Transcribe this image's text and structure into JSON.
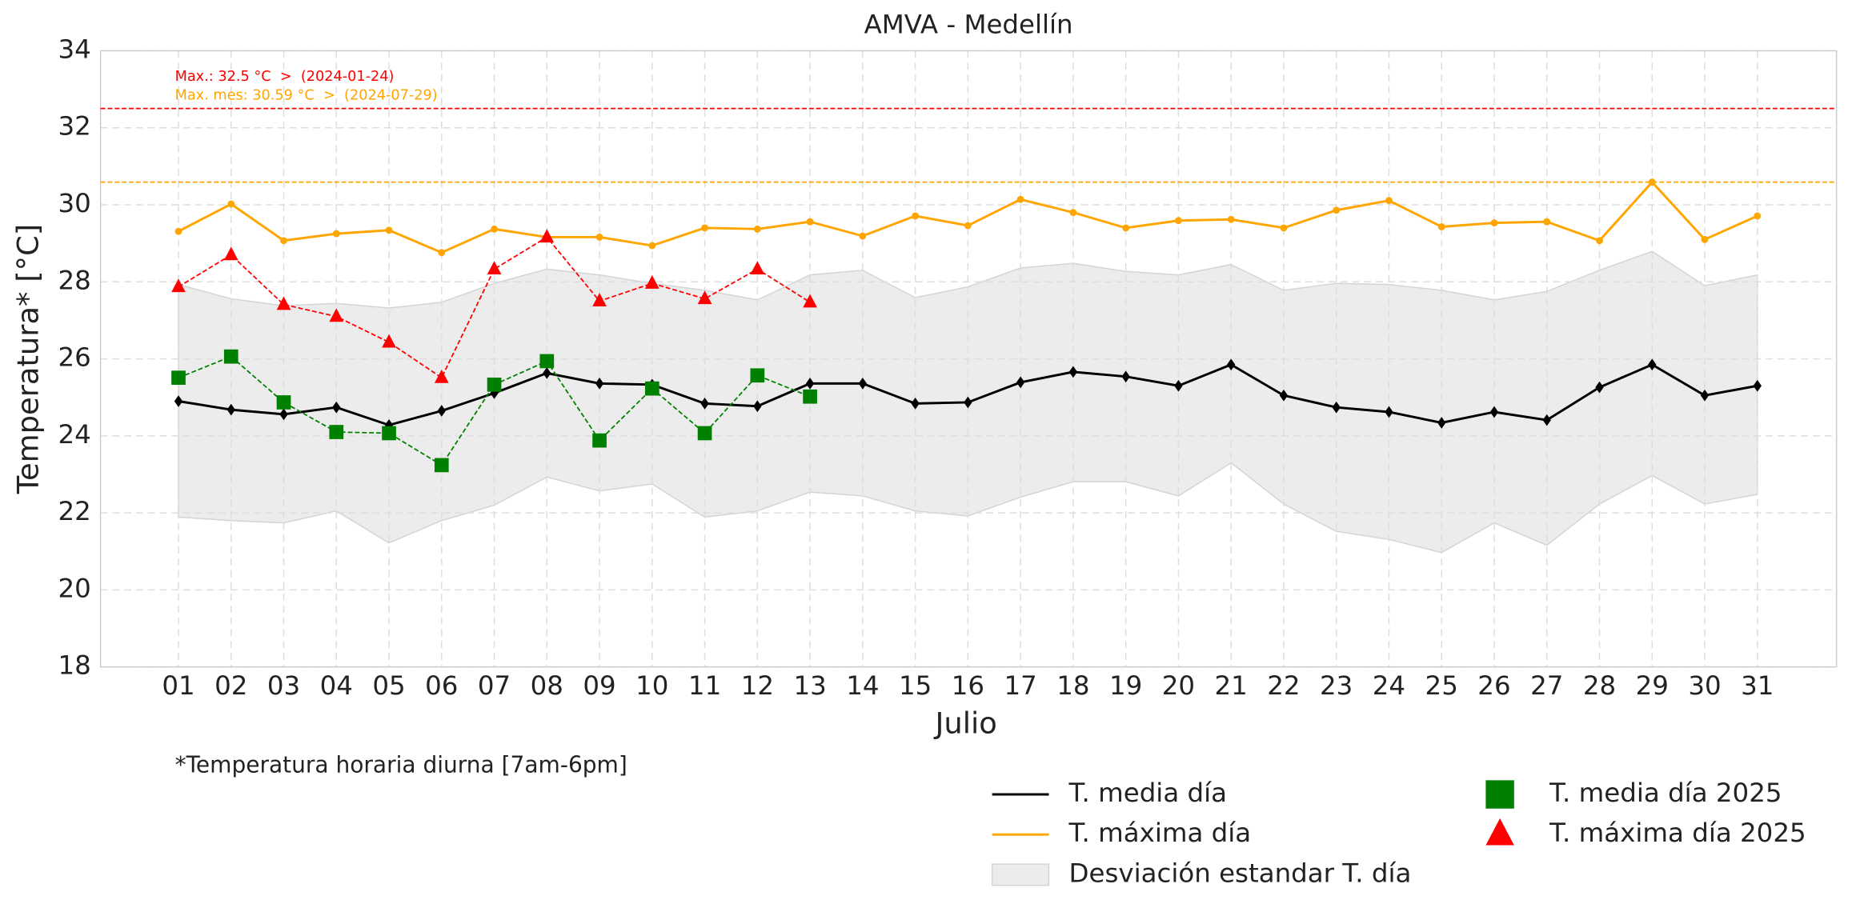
{
  "chart_data": {
    "type": "line",
    "title": "AMVA - Medellín",
    "xlabel": "Julio",
    "ylabel": "Temperatura* [°C]",
    "note": "*Temperatura horaria diurna [7am-6pm]",
    "categories": [
      "01",
      "02",
      "03",
      "04",
      "05",
      "06",
      "07",
      "08",
      "09",
      "10",
      "11",
      "12",
      "13",
      "14",
      "15",
      "16",
      "17",
      "18",
      "19",
      "20",
      "21",
      "22",
      "23",
      "24",
      "25",
      "26",
      "27",
      "28",
      "29",
      "30",
      "31"
    ],
    "ylim": [
      18,
      34
    ],
    "yticks": [
      18,
      20,
      22,
      24,
      26,
      28,
      30,
      32,
      34
    ],
    "grid": true,
    "band": {
      "name": "Desviación estandar T. día",
      "color": "#e0e0e0",
      "upper": [
        27.93,
        27.56,
        27.38,
        27.44,
        27.32,
        27.47,
        27.96,
        28.33,
        28.18,
        27.96,
        27.78,
        27.53,
        28.18,
        28.3,
        27.59,
        27.87,
        28.36,
        28.48,
        28.27,
        28.18,
        28.45,
        27.78,
        27.96,
        27.93,
        27.78,
        27.53,
        27.75,
        28.3,
        28.79,
        27.9,
        28.18
      ],
      "lower": [
        21.89,
        21.8,
        21.74,
        22.05,
        21.22,
        21.8,
        22.2,
        22.93,
        22.57,
        22.75,
        21.89,
        22.05,
        22.54,
        22.44,
        22.05,
        21.92,
        22.41,
        22.81,
        22.81,
        22.44,
        23.3,
        22.23,
        21.52,
        21.31,
        20.97,
        21.74,
        21.16,
        22.23,
        22.97,
        22.23,
        22.48
      ]
    },
    "series": [
      {
        "name": "T. media día",
        "color": "#000000",
        "marker": "diamond",
        "dash": false,
        "values": [
          24.9,
          24.68,
          24.56,
          24.74,
          24.28,
          24.65,
          25.11,
          25.63,
          25.36,
          25.33,
          24.84,
          24.77,
          25.36,
          25.36,
          24.84,
          24.87,
          25.39,
          25.66,
          25.54,
          25.3,
          25.85,
          25.05,
          24.74,
          24.62,
          24.34,
          24.62,
          24.41,
          25.26,
          25.85,
          25.05,
          25.3
        ]
      },
      {
        "name": "T. máxima día",
        "color": "#ffa500",
        "marker": "circle",
        "dash": false,
        "values": [
          29.31,
          30.02,
          29.07,
          29.25,
          29.34,
          28.76,
          29.37,
          29.16,
          29.16,
          28.94,
          29.4,
          29.37,
          29.56,
          29.19,
          29.71,
          29.46,
          30.14,
          29.8,
          29.4,
          29.59,
          29.62,
          29.4,
          29.86,
          30.11,
          29.43,
          29.53,
          29.56,
          29.07,
          30.59,
          29.1,
          29.71
        ]
      },
      {
        "name": "T. media día 2025",
        "color": "#008000",
        "marker": "square",
        "dash": true,
        "values": [
          25.51,
          26.06,
          24.87,
          24.1,
          24.07,
          23.24,
          25.33,
          25.94,
          23.88,
          25.23,
          24.07,
          25.57,
          25.02,
          null,
          null,
          null,
          null,
          null,
          null,
          null,
          null,
          null,
          null,
          null,
          null,
          null,
          null,
          null,
          null,
          null,
          null
        ]
      },
      {
        "name": "T. máxima día 2025",
        "color": "#ff0000",
        "marker": "triangle",
        "dash": true,
        "values": [
          27.87,
          28.7,
          27.41,
          27.1,
          26.43,
          25.51,
          28.33,
          29.16,
          27.5,
          27.96,
          27.56,
          28.33,
          27.47,
          null,
          null,
          null,
          null,
          null,
          null,
          null,
          null,
          null,
          null,
          null,
          null,
          null,
          null,
          null,
          null,
          null,
          null
        ]
      }
    ],
    "hlines": [
      {
        "value": 32.5,
        "color": "#ff0000",
        "label": "Max.: 32.5 °C  >  (2024-01-24)"
      },
      {
        "value": 30.59,
        "color": "#ffa500",
        "label": "Max. mes: 30.59 °C  >  (2024-07-29)"
      }
    ]
  }
}
